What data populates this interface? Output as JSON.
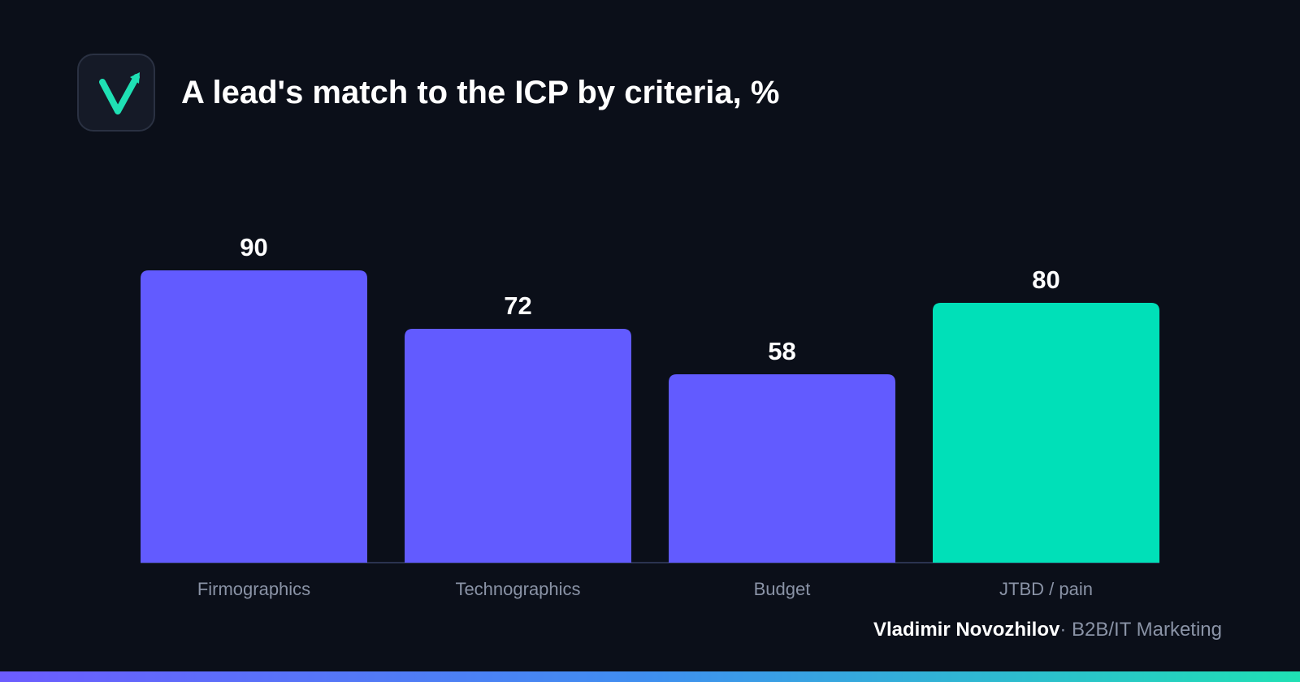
{
  "header": {
    "title": "A lead's match to the ICP by criteria, %",
    "logo_icon": "checkmark-arrow-icon"
  },
  "chart_data": {
    "type": "bar",
    "title": "A lead's match to the ICP by criteria, %",
    "xlabel": "",
    "ylabel": "",
    "categories": [
      "Firmographics",
      "Technographics",
      "Budget",
      "JTBD / pain"
    ],
    "values": [
      90,
      72,
      58,
      80
    ],
    "data_labels": [
      "90",
      "72",
      "58",
      "80"
    ],
    "colors": [
      "#625bff",
      "#625bff",
      "#625bff",
      "#00e0b8"
    ],
    "ylim": [
      0,
      100
    ],
    "grid": false,
    "legend": "none"
  },
  "footer": {
    "author": "Vladimir Novozhilov",
    "separator": "·",
    "role": " B2B/IT Marketing"
  },
  "colors": {
    "background": "#0b0f19",
    "accent_purple": "#625bff",
    "accent_teal": "#00e0b8",
    "text_primary": "#ffffff",
    "text_muted": "#8a93a6"
  }
}
